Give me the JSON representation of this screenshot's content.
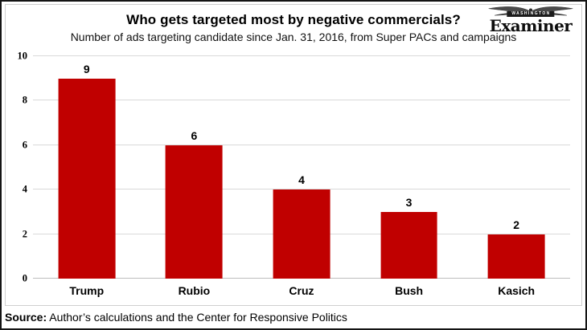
{
  "logo": {
    "top_text": "WASHINGTON",
    "name": "Examiner"
  },
  "chart_data": {
    "type": "bar",
    "title": "Who gets targeted most by negative commercials?",
    "subtitle": "Number of ads targeting candidate since Jan. 31, 2016, from Super PACs and campaigns",
    "categories": [
      "Trump",
      "Rubio",
      "Cruz",
      "Bush",
      "Kasich"
    ],
    "values": [
      9,
      6,
      4,
      3,
      2
    ],
    "xlabel": "",
    "ylabel": "",
    "ylim": [
      0,
      10
    ],
    "yticks": [
      0,
      2,
      4,
      6,
      8,
      10
    ],
    "grid": true,
    "legend": false,
    "data_labels": true,
    "bar_color": "#c00000"
  },
  "colors": {
    "bar": "#c00000",
    "gridline": "#d9d9d9",
    "baseline": "#bdbdbd",
    "inner_border": "#cfcfcf",
    "outer_border": "#141414"
  },
  "footer": {
    "source_label": "Source:",
    "source_text": " Author’s calculations and the Center for Responsive Politics"
  }
}
